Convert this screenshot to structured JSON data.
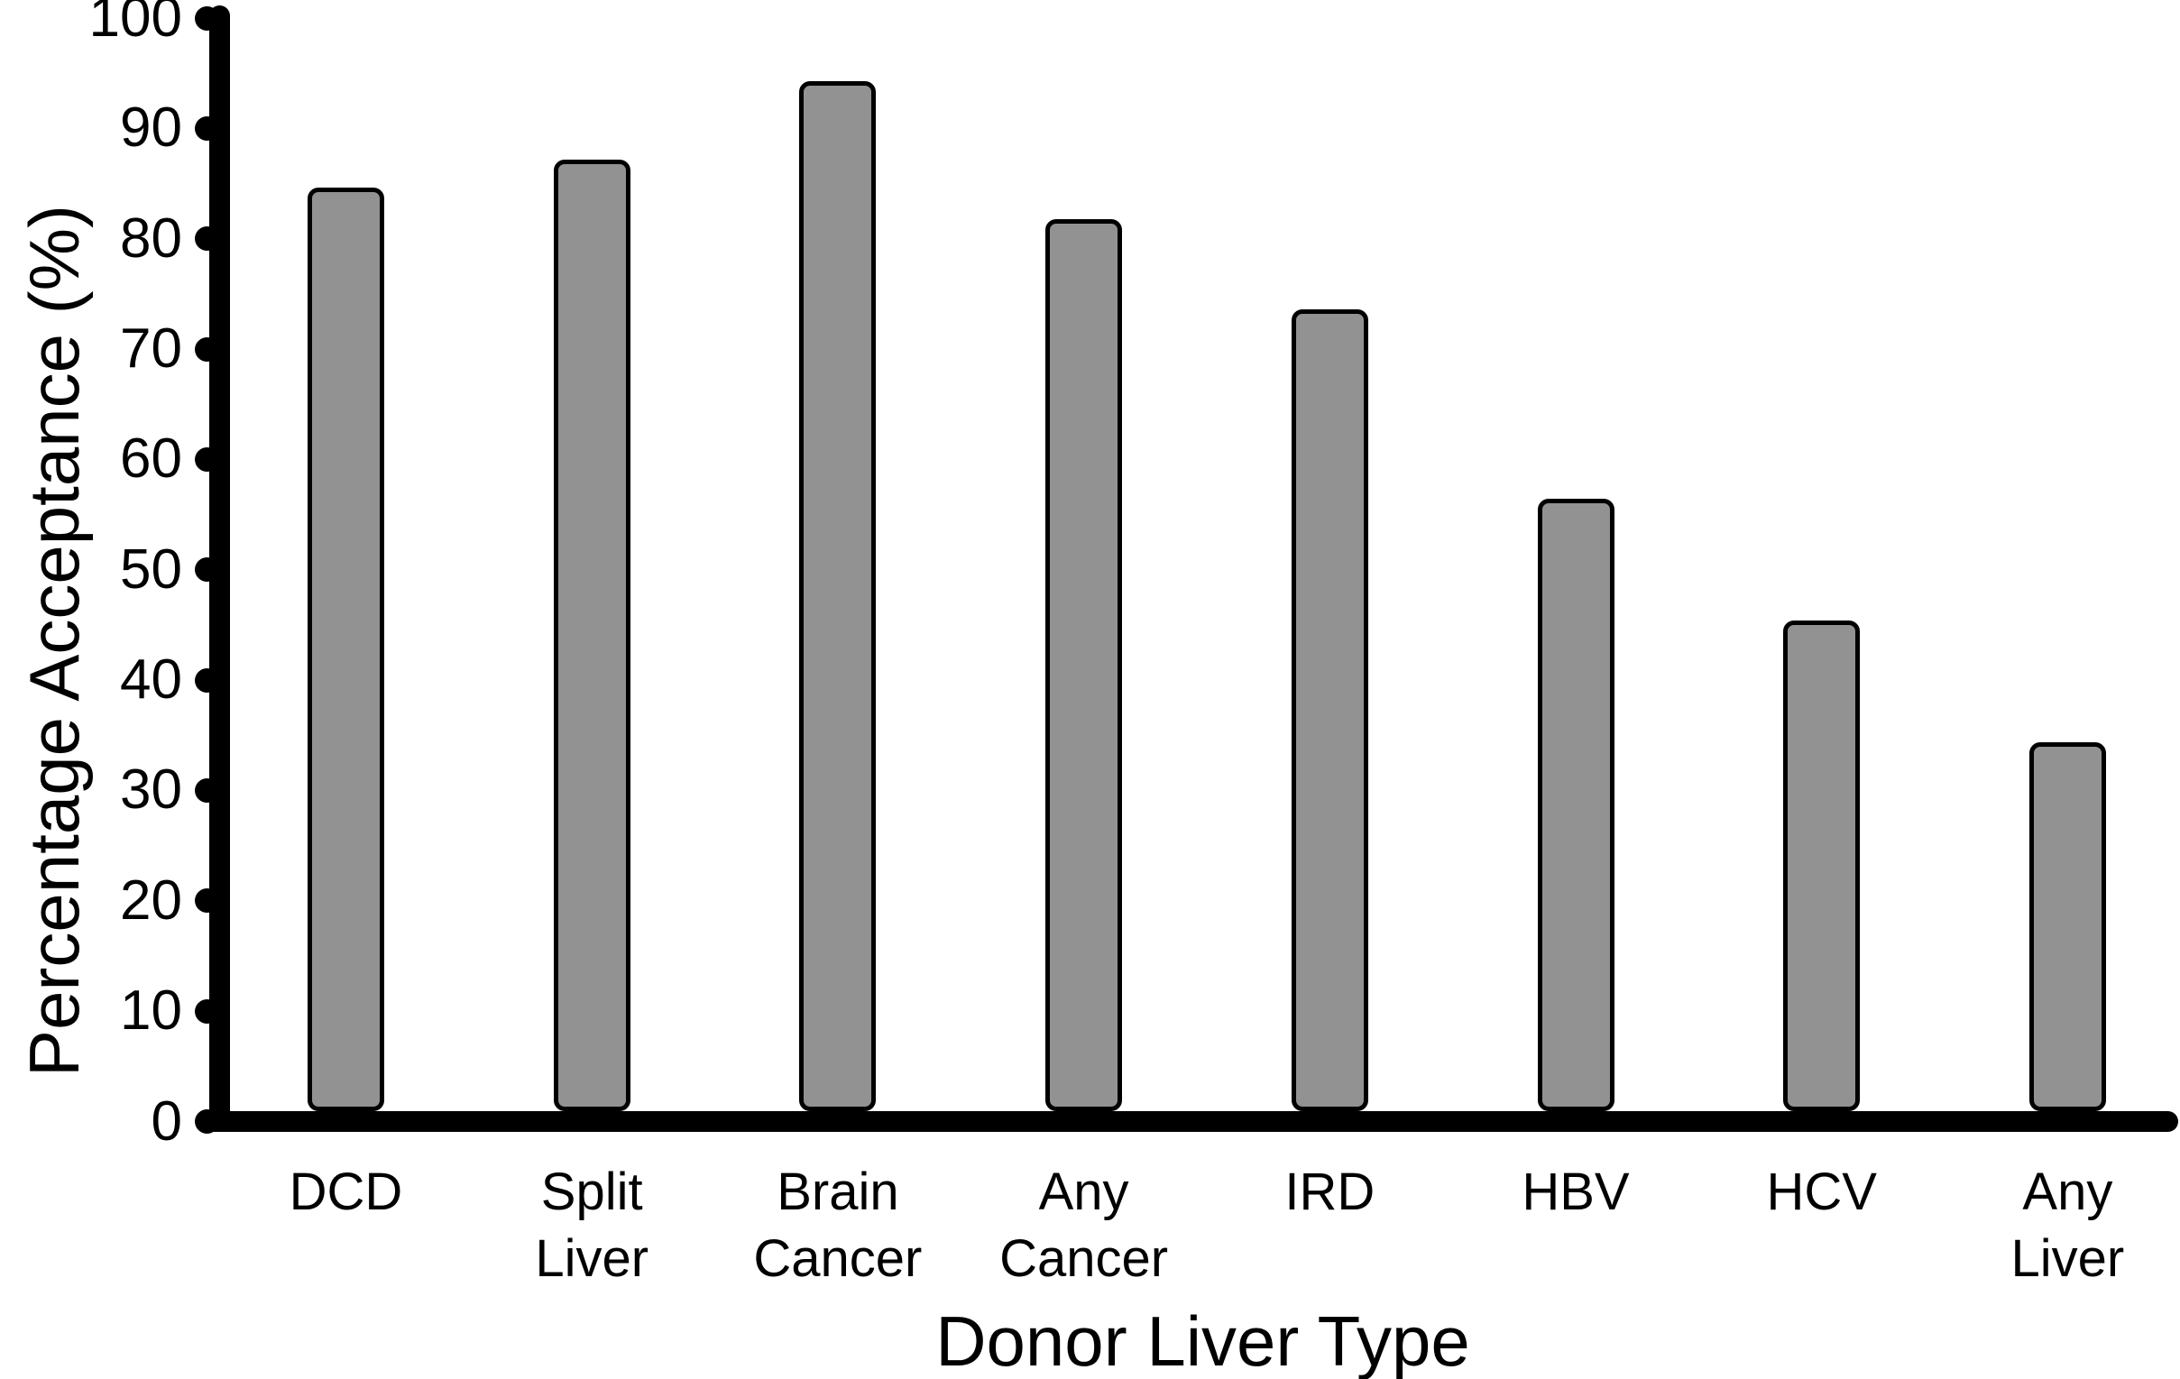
{
  "figure": {
    "background": "#ffffff",
    "text_color": "#000000"
  },
  "chart_data": {
    "type": "bar",
    "title": "",
    "xlabel": "Donor Liver Type",
    "ylabel": "Percentage Acceptance (%)",
    "categories": [
      "DCD",
      "Split\nLiver",
      "Brain\nCancer",
      "Any\nCancer",
      "IRD",
      "HBV",
      "HCV",
      "Any\nLiver"
    ],
    "values": [
      84.6,
      87.2,
      94.3,
      81.8,
      73.6,
      56.4,
      45.4,
      34.4
    ],
    "ylim": [
      0,
      100
    ],
    "yticks": [
      0,
      10,
      20,
      30,
      40,
      50,
      60,
      70,
      80,
      90,
      100
    ],
    "grid": false,
    "legend": null,
    "bar_fill": "#929292",
    "bar_border": "#000000",
    "axis_color": "#000000",
    "tick_style": "round-dot"
  }
}
